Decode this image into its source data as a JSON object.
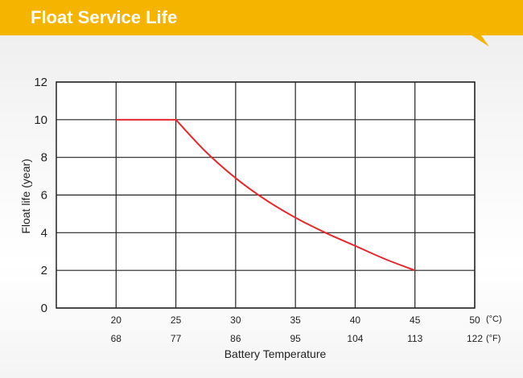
{
  "header": {
    "title": "Float Service Life",
    "accent_color": "#f5b400"
  },
  "chart_data": {
    "type": "line",
    "title": "Float Service Life",
    "xlabel": "Battery Temperature",
    "ylabel": "Float life (year)",
    "x_ticks_c": [
      "20",
      "25",
      "30",
      "35",
      "40",
      "45",
      "50"
    ],
    "x_ticks_f": [
      "68",
      "77",
      "86",
      "95",
      "104",
      "113",
      "122"
    ],
    "x_unit_c": "(°C)",
    "x_unit_f": "(°F)",
    "y_ticks": [
      "0",
      "2",
      "4",
      "6",
      "8",
      "10",
      "12"
    ],
    "xlim": [
      15,
      50
    ],
    "ylim": [
      0,
      12
    ],
    "grid": true,
    "line_color": "#e8282e",
    "series": [
      {
        "x": [
          20,
          25,
          27.5,
          30,
          32.5,
          35,
          37.5,
          40,
          42.5,
          45
        ],
        "y": [
          10,
          10,
          8.3,
          6.9,
          5.75,
          4.8,
          4.0,
          3.3,
          2.6,
          2.0
        ]
      }
    ]
  }
}
